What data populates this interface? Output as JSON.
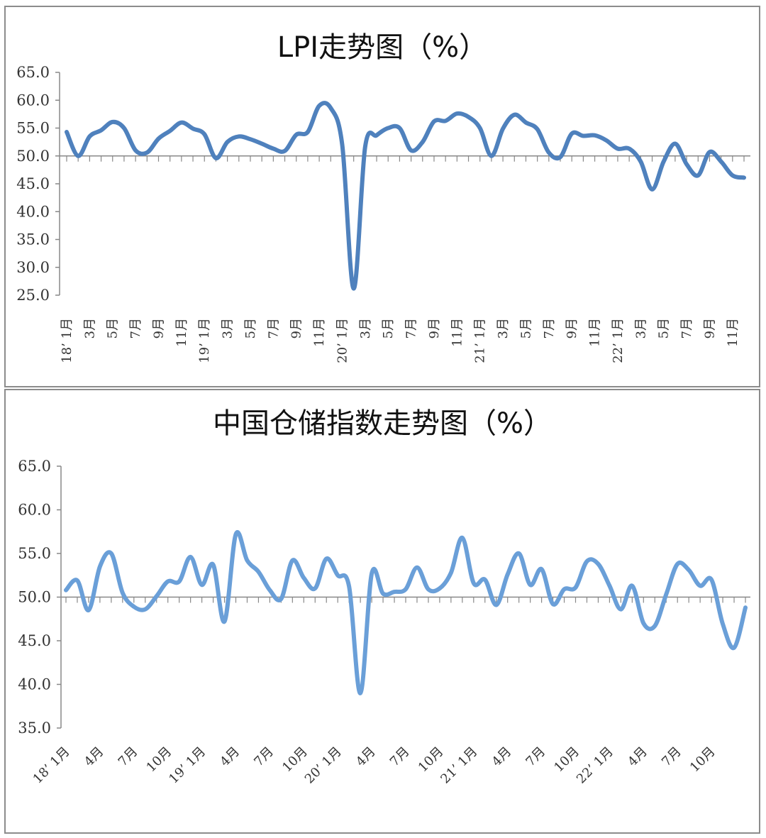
{
  "chart_data": [
    {
      "type": "line",
      "title": "LPI走势图（%）",
      "ylim": [
        25,
        65
      ],
      "yticks": [
        "65.0",
        "60.0",
        "55.0",
        "50.0",
        "45.0",
        "40.0",
        "35.0",
        "30.0",
        "25.0"
      ],
      "baseline": 50,
      "xtick_labels": [
        {
          "i": 0,
          "text": "18’ 1月"
        },
        {
          "i": 2,
          "text": "3月"
        },
        {
          "i": 4,
          "text": "5月"
        },
        {
          "i": 6,
          "text": "7月"
        },
        {
          "i": 8,
          "text": "9月"
        },
        {
          "i": 10,
          "text": "11月"
        },
        {
          "i": 12,
          "text": "19’ 1月"
        },
        {
          "i": 14,
          "text": "3月"
        },
        {
          "i": 16,
          "text": "5月"
        },
        {
          "i": 18,
          "text": "7月"
        },
        {
          "i": 20,
          "text": "9月"
        },
        {
          "i": 22,
          "text": "11月"
        },
        {
          "i": 24,
          "text": "20’ 1月"
        },
        {
          "i": 26,
          "text": "3月"
        },
        {
          "i": 28,
          "text": "5月"
        },
        {
          "i": 30,
          "text": "7月"
        },
        {
          "i": 32,
          "text": "9月"
        },
        {
          "i": 34,
          "text": "11月"
        },
        {
          "i": 36,
          "text": "21’ 1月"
        },
        {
          "i": 38,
          "text": "3月"
        },
        {
          "i": 40,
          "text": "5月"
        },
        {
          "i": 42,
          "text": "7月"
        },
        {
          "i": 44,
          "text": "9月"
        },
        {
          "i": 46,
          "text": "11月"
        },
        {
          "i": 48,
          "text": "22’ 1月"
        },
        {
          "i": 50,
          "text": "3月"
        },
        {
          "i": 52,
          "text": "5月"
        },
        {
          "i": 54,
          "text": "7月"
        },
        {
          "i": 56,
          "text": "9月"
        },
        {
          "i": 58,
          "text": "11月"
        }
      ],
      "series": [
        {
          "color": "#4f81bd",
          "values": [
            54.3,
            50.0,
            53.5,
            54.6,
            56.1,
            55.0,
            51.0,
            50.6,
            53.1,
            54.5,
            56.0,
            54.9,
            53.9,
            49.6,
            52.5,
            53.5,
            53.0,
            52.2,
            51.3,
            50.9,
            53.8,
            54.3,
            59.0,
            58.6,
            52.0,
            26.2,
            51.6,
            53.7,
            55.0,
            55.0,
            51.0,
            52.5,
            56.2,
            56.3,
            57.6,
            57.0,
            55.0,
            50.0,
            54.9,
            57.4,
            56.0,
            54.8,
            50.6,
            49.8,
            54.0,
            53.6,
            53.7,
            52.8,
            51.3,
            51.3,
            49.0,
            44.0,
            49.0,
            52.2,
            48.5,
            46.5,
            50.7,
            49.0,
            46.5,
            46.1
          ]
        }
      ]
    },
    {
      "type": "line",
      "title": "中国仓储指数走势图（%）",
      "ylim": [
        35,
        65
      ],
      "yticks": [
        "65.0",
        "60.0",
        "55.0",
        "50.0",
        "45.0",
        "40.0",
        "35.0"
      ],
      "baseline": 50,
      "xtick_labels": [
        {
          "i": 0,
          "text": "18’ 1月"
        },
        {
          "i": 3,
          "text": "4月"
        },
        {
          "i": 6,
          "text": "7月"
        },
        {
          "i": 9,
          "text": "10月"
        },
        {
          "i": 12,
          "text": "19’ 1月"
        },
        {
          "i": 15,
          "text": "4月"
        },
        {
          "i": 18,
          "text": "7月"
        },
        {
          "i": 21,
          "text": "10月"
        },
        {
          "i": 24,
          "text": "20’ 1月"
        },
        {
          "i": 27,
          "text": "4月"
        },
        {
          "i": 30,
          "text": "7月"
        },
        {
          "i": 33,
          "text": "10月"
        },
        {
          "i": 36,
          "text": "21’ 1月"
        },
        {
          "i": 39,
          "text": "4月"
        },
        {
          "i": 42,
          "text": "7月"
        },
        {
          "i": 45,
          "text": "10月"
        },
        {
          "i": 48,
          "text": "22’ 1月"
        },
        {
          "i": 51,
          "text": "4月"
        },
        {
          "i": 54,
          "text": "7月"
        },
        {
          "i": 57,
          "text": "10月"
        }
      ],
      "series": [
        {
          "color": "#6a9fd8",
          "values": [
            50.8,
            51.9,
            48.5,
            53.5,
            55.0,
            50.5,
            48.9,
            48.6,
            50.1,
            51.8,
            51.8,
            54.6,
            51.4,
            53.7,
            47.2,
            57.2,
            54.2,
            52.9,
            50.8,
            49.8,
            54.2,
            52.2,
            51.0,
            54.4,
            52.5,
            51.2,
            39.0,
            52.7,
            50.4,
            50.6,
            50.9,
            53.4,
            50.9,
            51.0,
            52.8,
            56.8,
            51.6,
            52.0,
            49.1,
            52.6,
            55.0,
            51.4,
            53.2,
            49.2,
            50.9,
            51.1,
            54.1,
            53.8,
            51.3,
            48.6,
            51.3,
            47.0,
            46.7,
            50.3,
            53.8,
            53.1,
            51.3,
            52.0,
            46.9,
            44.2,
            48.8
          ]
        }
      ]
    }
  ]
}
